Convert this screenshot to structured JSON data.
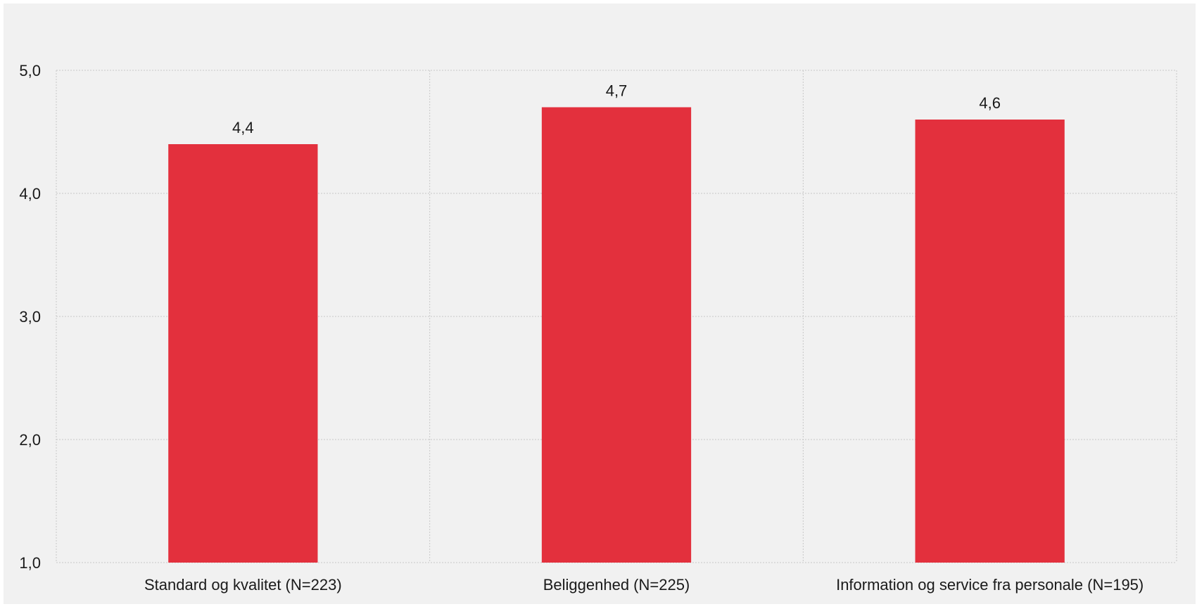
{
  "chart_data": {
    "type": "bar",
    "categories": [
      "Standard og kvalitet (N=223)",
      "Beliggenhed (N=225)",
      "Information og service fra personale (N=195)"
    ],
    "values": [
      4.4,
      4.7,
      4.6
    ],
    "value_labels": [
      "4,4",
      "4,7",
      "4,6"
    ],
    "title": "",
    "xlabel": "",
    "ylabel": "",
    "ylim": [
      1,
      5
    ],
    "yticks": [
      1,
      2,
      3,
      4,
      5
    ],
    "ytick_labels": [
      "1,0",
      "2,0",
      "3,0",
      "4,0",
      "5,0"
    ],
    "grid": true,
    "bar_color": "#e3303d",
    "background_color": "#f1f1f1"
  }
}
